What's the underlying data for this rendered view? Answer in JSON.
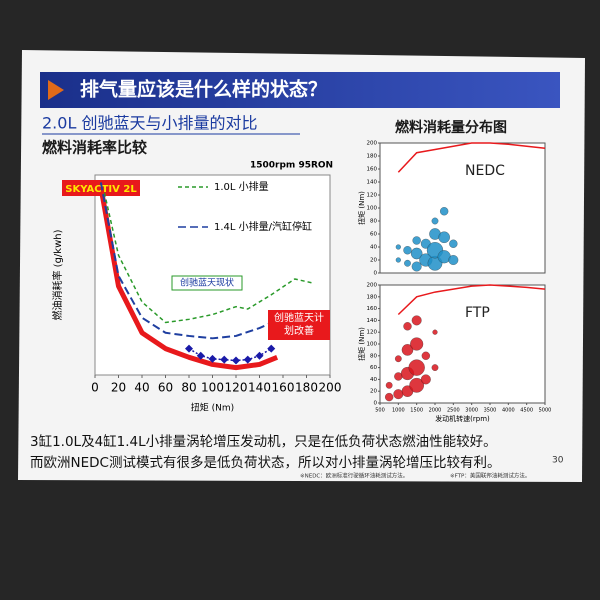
{
  "slide": {
    "title": "排气量应该是什么样的状态？",
    "subtitle": "2.0L 创驰蓝天与小排量的对比",
    "section_left": "燃料消耗率比较",
    "section_right": "燃料消耗量分布图",
    "body": [
      "3缸1.0L及4缸1.4L小排量涡轮增压发动机，只是在低负荷状态燃油性能较好。",
      "而欧洲NEDC测试模式有很多是低负荷状态，所以对小排量涡轮增压比较有利。"
    ],
    "footnotes": [
      "※NEDC：欧洲标准行驶循环油耗测试方法。",
      "※FTP：美国联邦油耗测试方法。"
    ],
    "page_number": "30"
  },
  "chart_data": [
    {
      "type": "line",
      "condition": "1500rpm 95RON",
      "xlabel": "扭矩 (Nm)",
      "ylabel": "燃油消耗率 (g/kwh)",
      "xlim": [
        0,
        200
      ],
      "xticks": [
        0,
        20,
        40,
        60,
        80,
        100,
        120,
        140,
        160,
        180,
        200
      ],
      "annotation": "创驰蓝天现状",
      "series": [
        {
          "name": "SKYACTIV 2L",
          "color": "#e8191c",
          "width": 5,
          "dash": "none",
          "x": [
            5,
            20,
            40,
            60,
            80,
            100,
            120,
            140,
            155
          ],
          "values": [
            437,
            312,
            253,
            233,
            222,
            213,
            209,
            213,
            222
          ]
        },
        {
          "name": "1.0L 小排量",
          "color": "#2a9a2a",
          "width": 1.5,
          "dash": "4,3",
          "legend": true,
          "x": [
            8,
            20,
            40,
            60,
            80,
            100,
            120,
            130,
            150,
            170,
            185
          ],
          "values": [
            430,
            351,
            292,
            266,
            270,
            276,
            286,
            283,
            301,
            321,
            316
          ]
        },
        {
          "name": "1.4L 小排量/汽缸停缸",
          "color": "#1f3fa0",
          "width": 2,
          "dash": "8,4",
          "legend": true,
          "x": [
            5,
            20,
            40,
            60,
            80,
            100,
            120,
            140,
            160,
            195
          ],
          "values": [
            443,
            325,
            272,
            253,
            249,
            246,
            249,
            259,
            272,
            279
          ]
        },
        {
          "name": "创驰蓝天计划改善",
          "color": "#1a1aa8",
          "width": 1.5,
          "dash": "2,2",
          "marker": "diamond",
          "x": [
            80,
            90,
            100,
            110,
            120,
            130,
            140,
            150
          ],
          "values": [
            233,
            224,
            220,
            219,
            218,
            219,
            224,
            233
          ]
        }
      ]
    },
    {
      "type": "scatter",
      "title": "NEDC",
      "ylabel": "扭矩 (Nm)",
      "xlim": [
        500,
        5000
      ],
      "ylim": [
        0,
        200
      ],
      "yticks": [
        0,
        20,
        40,
        60,
        80,
        100,
        120,
        140,
        160,
        180,
        200
      ],
      "color": "#1e8fc8",
      "points": {
        "x": [
          1000,
          1000,
          1250,
          1250,
          1500,
          1500,
          1500,
          1750,
          1750,
          2000,
          2000,
          2000,
          2250,
          2250,
          2500,
          2500,
          2250,
          2000
        ],
        "y": [
          20,
          40,
          15,
          35,
          10,
          30,
          50,
          20,
          45,
          15,
          35,
          60,
          25,
          55,
          20,
          45,
          95,
          80
        ],
        "size": [
          3,
          3,
          4,
          5,
          6,
          7,
          5,
          8,
          6,
          9,
          10,
          7,
          8,
          7,
          6,
          5,
          5,
          4
        ]
      },
      "max_torque": {
        "color": "#e8191c",
        "x": [
          1000,
          1500,
          2000,
          2500,
          3000,
          3500,
          4000,
          4500,
          5000
        ],
        "y": [
          155,
          185,
          190,
          195,
          200,
          200,
          198,
          195,
          192
        ]
      }
    },
    {
      "type": "scatter",
      "title": "FTP",
      "xlabel": "发动机转速(rpm)",
      "ylabel": "扭矩 (Nm)",
      "xlim": [
        500,
        5000
      ],
      "ylim": [
        0,
        200
      ],
      "xticks": [
        500,
        1000,
        1500,
        2000,
        2500,
        3000,
        3500,
        4000,
        4500,
        5000
      ],
      "yticks": [
        0,
        20,
        40,
        60,
        80,
        100,
        120,
        140,
        160,
        180,
        200
      ],
      "color": "#d8141c",
      "points": {
        "x": [
          750,
          750,
          1000,
          1000,
          1000,
          1250,
          1250,
          1250,
          1250,
          1500,
          1500,
          1500,
          1500,
          1750,
          1750,
          2000,
          2000
        ],
        "y": [
          10,
          30,
          15,
          45,
          75,
          20,
          50,
          90,
          130,
          30,
          60,
          100,
          140,
          40,
          80,
          60,
          120
        ],
        "size": [
          5,
          4,
          6,
          5,
          4,
          7,
          8,
          7,
          5,
          9,
          10,
          8,
          6,
          6,
          5,
          4,
          3
        ]
      },
      "max_torque": {
        "color": "#e8191c",
        "x": [
          1000,
          1500,
          2000,
          2500,
          3000,
          3500,
          4000,
          4500,
          5000
        ],
        "y": [
          150,
          180,
          188,
          193,
          198,
          200,
          198,
          196,
          193
        ]
      }
    }
  ]
}
